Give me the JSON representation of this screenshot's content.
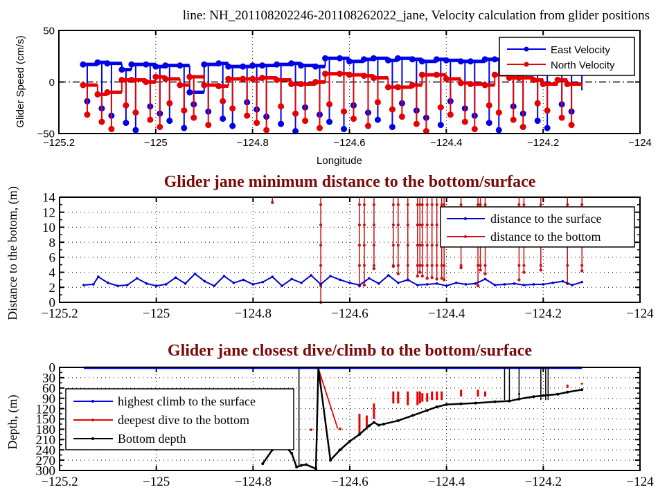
{
  "figure_title": "line: NH_201108202246-201108262022_jane, Velocity calculation from glider positions",
  "colors": {
    "blue": "#0000e6",
    "red": "#e60000",
    "dark_red": "#c00000",
    "black": "#000000",
    "title_red": "#7a0a0a"
  },
  "chart_data": [
    {
      "type": "line",
      "title": "line: NH_201108202246-201108262022_jane, Velocity calculation from glider positions",
      "xlabel": "Longitude",
      "ylabel": "Glider Speed (cm/s)",
      "xlim": [
        -125.2,
        -124
      ],
      "ylim": [
        -50,
        50
      ],
      "xticks": [
        "-125.2",
        "-125",
        "-124.8",
        "-124.6",
        "-124.4",
        "-124.2",
        "-124"
      ],
      "xtick_values": [
        -125.2,
        -125,
        -124.8,
        -124.6,
        -124.4,
        -124.2,
        -124
      ],
      "yticks": [
        "-50",
        "0",
        "50"
      ],
      "ytick_values": [
        -50,
        0,
        50
      ],
      "grid": "x-only dotted",
      "zero_line": true,
      "legend": "top-right",
      "series": [
        {
          "name": "East Velocity",
          "color": "#0000e6",
          "x": [
            -125.15,
            -125.12,
            -125.1,
            -125.07,
            -125.05,
            -125.02,
            -125.0,
            -124.98,
            -124.95,
            -124.93,
            -124.9,
            -124.87,
            -124.85,
            -124.82,
            -124.8,
            -124.78,
            -124.75,
            -124.72,
            -124.7,
            -124.67,
            -124.65,
            -124.62,
            -124.6,
            -124.57,
            -124.55,
            -124.52,
            -124.5,
            -124.47,
            -124.45,
            -124.42,
            -124.4,
            -124.37,
            -124.35,
            -124.32,
            -124.3,
            -124.27,
            -124.25,
            -124.22,
            -124.2,
            -124.17,
            -124.15,
            -124.12
          ],
          "y": [
            17,
            19,
            18,
            12,
            17,
            17,
            15,
            16,
            16,
            -10,
            17,
            18,
            15,
            15,
            16,
            16,
            17,
            18,
            16,
            15,
            23,
            23,
            20,
            22,
            23,
            21,
            23,
            22,
            20,
            22,
            21,
            20,
            20,
            22,
            22,
            30,
            28,
            25,
            27,
            26,
            26,
            -8
          ]
        },
        {
          "name": "North Velocity",
          "color": "#e60000",
          "x": [
            -125.15,
            -125.12,
            -125.1,
            -125.07,
            -125.05,
            -125.02,
            -125.0,
            -124.98,
            -124.95,
            -124.93,
            -124.9,
            -124.87,
            -124.85,
            -124.82,
            -124.8,
            -124.78,
            -124.75,
            -124.72,
            -124.7,
            -124.67,
            -124.65,
            -124.62,
            -124.6,
            -124.57,
            -124.55,
            -124.52,
            -124.5,
            -124.47,
            -124.45,
            -124.42,
            -124.4,
            -124.37,
            -124.35,
            -124.32,
            -124.3,
            -124.27,
            -124.25,
            -124.22,
            -124.2,
            -124.17,
            -124.15,
            -124.12
          ],
          "y": [
            -3,
            -12,
            -10,
            2,
            2,
            0,
            5,
            3,
            -3,
            5,
            -3,
            -4,
            3,
            3,
            3,
            4,
            2,
            -2,
            -2,
            0,
            8,
            8,
            7,
            6,
            4,
            -5,
            -5,
            -3,
            7,
            7,
            3,
            -1,
            -2,
            -3,
            7,
            4,
            4,
            2,
            -2,
            2,
            -2,
            -5
          ]
        }
      ]
    },
    {
      "type": "line",
      "title": "Glider jane minimum distance to the bottom/surface",
      "xlabel": "",
      "ylabel": "Distance to the botom, (m)",
      "xlim": [
        -125.2,
        -124
      ],
      "ylim": [
        0,
        14
      ],
      "xticks": [
        "-125.2",
        "-125",
        "-124.8",
        "-124.6",
        "-124.4",
        "-124.2",
        "-124"
      ],
      "xtick_values": [
        -125.2,
        -125,
        -124.8,
        -124.6,
        -124.4,
        -124.2,
        -124
      ],
      "yticks": [
        "0",
        "2",
        "4",
        "6",
        "8",
        "10",
        "12",
        "14"
      ],
      "ytick_values": [
        0,
        2,
        4,
        6,
        8,
        10,
        12,
        14
      ],
      "grid": "dotted",
      "legend": "top-right",
      "series": [
        {
          "name": "distance to the surface",
          "color": "#0000cc",
          "x": [
            -125.15,
            -125.13,
            -125.12,
            -125.1,
            -125.08,
            -125.06,
            -125.04,
            -125.02,
            -125.0,
            -124.98,
            -124.96,
            -124.94,
            -124.92,
            -124.9,
            -124.88,
            -124.86,
            -124.84,
            -124.82,
            -124.8,
            -124.78,
            -124.76,
            -124.74,
            -124.72,
            -124.7,
            -124.68,
            -124.66,
            -124.64,
            -124.62,
            -124.6,
            -124.58,
            -124.56,
            -124.54,
            -124.52,
            -124.5,
            -124.48,
            -124.46,
            -124.44,
            -124.42,
            -124.4,
            -124.38,
            -124.36,
            -124.34,
            -124.32,
            -124.3,
            -124.28,
            -124.26,
            -124.24,
            -124.22,
            -124.2,
            -124.18,
            -124.16,
            -124.14,
            -124.12
          ],
          "y": [
            2.3,
            2.4,
            3.4,
            2.6,
            2.2,
            2.3,
            3.2,
            2.5,
            2.2,
            2.4,
            3.3,
            2.5,
            3.8,
            2.8,
            2.2,
            3.5,
            2.6,
            3.0,
            2.4,
            2.7,
            3.4,
            2.2,
            3.1,
            2.6,
            3.6,
            2.4,
            3.5,
            3.0,
            2.6,
            2.3,
            3.2,
            2.5,
            3.6,
            2.6,
            3.0,
            2.3,
            2.4,
            2.5,
            2.2,
            2.6,
            2.4,
            2.5,
            3.1,
            2.3,
            2.4,
            2.5,
            2.3,
            2.4,
            2.4,
            2.6,
            2.8,
            2.3,
            2.7
          ]
        },
        {
          "name": "distance to the bottom",
          "color": "#cc1010",
          "segments_x": [
            -124.76,
            -124.66,
            -124.58,
            -124.57,
            -124.55,
            -124.51,
            -124.5,
            -124.48,
            -124.46,
            -124.455,
            -124.45,
            -124.44,
            -124.43,
            -124.42,
            -124.41,
            -124.405,
            -124.37,
            -124.335,
            -124.33,
            -124.32,
            -124.25,
            -124.24,
            -124.205,
            -124.15,
            -124.12
          ],
          "segments_ymin": [
            13.3,
            0,
            2.2,
            2.3,
            4.5,
            4.8,
            3.8,
            3.0,
            3.5,
            4.0,
            3.5,
            3.2,
            3.3,
            3.1,
            3.2,
            3.0,
            4.6,
            2.2,
            4.3,
            3.8,
            3.0,
            4.0,
            4.3,
            2.5,
            4.2
          ]
        }
      ]
    },
    {
      "type": "line",
      "title": "Glider jane closest dive/climb to the bottom/surface",
      "xlabel": "",
      "ylabel": "Depth, (m)",
      "xlim": [
        -125.2,
        -124
      ],
      "ylim": [
        300,
        0
      ],
      "xticks": [
        "-125.2",
        "-125",
        "-124.8",
        "-124.6",
        "-124.4",
        "-124.2",
        "-124"
      ],
      "xtick_values": [
        -125.2,
        -125,
        -124.8,
        -124.6,
        -124.4,
        -124.2,
        -124
      ],
      "yticks": [
        "0",
        "30",
        "60",
        "90",
        "120",
        "150",
        "180",
        "210",
        "240",
        "270",
        "300"
      ],
      "ytick_values": [
        0,
        30,
        60,
        90,
        120,
        150,
        180,
        210,
        240,
        270,
        300
      ],
      "grid": "dotted",
      "legend": "middle-left",
      "series": [
        {
          "name": "highest climb to the surface",
          "color": "#0000e6",
          "x": [
            -125.15,
            -124.12
          ],
          "y": [
            1,
            1
          ]
        },
        {
          "name": "deepest dive to the bottom",
          "color": "#e60000",
          "segments_x": [
            -124.68,
            -124.62,
            -124.58,
            -124.565,
            -124.55,
            -124.51,
            -124.5,
            -124.48,
            -124.46,
            -124.455,
            -124.45,
            -124.44,
            -124.43,
            -124.42,
            -124.41,
            -124.37,
            -124.335,
            -124.32,
            -124.25,
            -124.24,
            -124.15,
            -124.12
          ],
          "segments_ytop": [
            178,
            175,
            135,
            140,
            105,
            70,
            70,
            70,
            70,
            70,
            75,
            75,
            70,
            70,
            70,
            65,
            65,
            70,
            75,
            80,
            50,
            45
          ],
          "segments_ybot": [
            185,
            183,
            195,
            175,
            150,
            105,
            105,
            110,
            110,
            105,
            100,
            100,
            95,
            95,
            95,
            85,
            85,
            85,
            80,
            80,
            60,
            50
          ]
        },
        {
          "name": "Bottom depth",
          "color": "#000000",
          "x": [
            -124.78,
            -124.76,
            -124.74,
            -124.72,
            -124.71,
            -124.7,
            -124.69,
            -124.67,
            -124.665,
            -124.64,
            -124.62,
            -124.6,
            -124.58,
            -124.56,
            -124.55,
            -124.54,
            -124.53,
            -124.5,
            -124.47,
            -124.44,
            -124.42,
            -124.4,
            -124.37,
            -124.34,
            -124.3,
            -124.27,
            -124.25,
            -124.22,
            -124.2,
            -124.17,
            -124.15,
            -124.12
          ],
          "y": [
            280,
            240,
            220,
            250,
            290,
            285,
            283,
            295,
            2,
            270,
            240,
            215,
            195,
            170,
            160,
            168,
            165,
            155,
            140,
            125,
            115,
            108,
            106,
            104,
            100,
            98,
            92,
            85,
            82,
            78,
            72,
            65
          ]
        }
      ]
    }
  ]
}
